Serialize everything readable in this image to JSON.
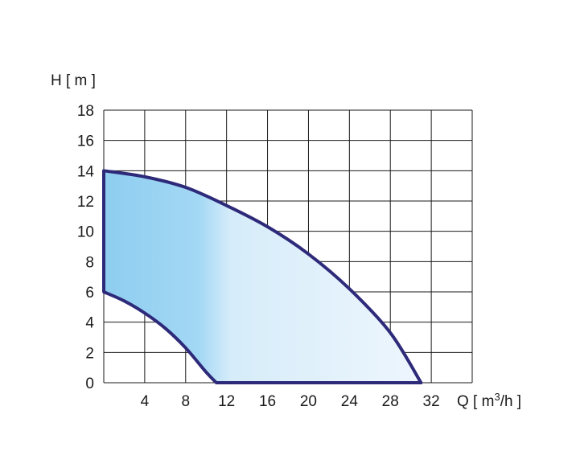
{
  "chart_data": {
    "type": "area",
    "ylabel": "H [ m ]",
    "xlabel": {
      "prefix": "Q [ m",
      "sup": "3",
      "suffix": "/h ]"
    },
    "xlim": [
      0,
      36
    ],
    "ylim": [
      0,
      18
    ],
    "x_ticks": [
      "4",
      "8",
      "12",
      "16",
      "20",
      "24",
      "28",
      "32"
    ],
    "y_ticks": [
      "0",
      "2",
      "4",
      "6",
      "8",
      "10",
      "12",
      "14",
      "16",
      "18"
    ],
    "grid": true,
    "region": {
      "outline_color": "#2e2a7a",
      "fill_gradient": [
        "#8ecdf0",
        "#a3d8f4",
        "#d6ecfa",
        "#eef6fd"
      ],
      "upper_curve": [
        {
          "x": 0,
          "y": 14
        },
        {
          "x": 4,
          "y": 13.6
        },
        {
          "x": 8,
          "y": 12.9
        },
        {
          "x": 12,
          "y": 11.7
        },
        {
          "x": 16,
          "y": 10.3
        },
        {
          "x": 20,
          "y": 8.5
        },
        {
          "x": 24,
          "y": 6.2
        },
        {
          "x": 28,
          "y": 3.3
        },
        {
          "x": 31,
          "y": 0
        }
      ],
      "lower_curve": [
        {
          "x": 0,
          "y": 6
        },
        {
          "x": 2,
          "y": 5.4
        },
        {
          "x": 4,
          "y": 4.6
        },
        {
          "x": 6,
          "y": 3.6
        },
        {
          "x": 8,
          "y": 2.3
        },
        {
          "x": 10,
          "y": 0.7
        },
        {
          "x": 11,
          "y": 0
        }
      ]
    }
  }
}
